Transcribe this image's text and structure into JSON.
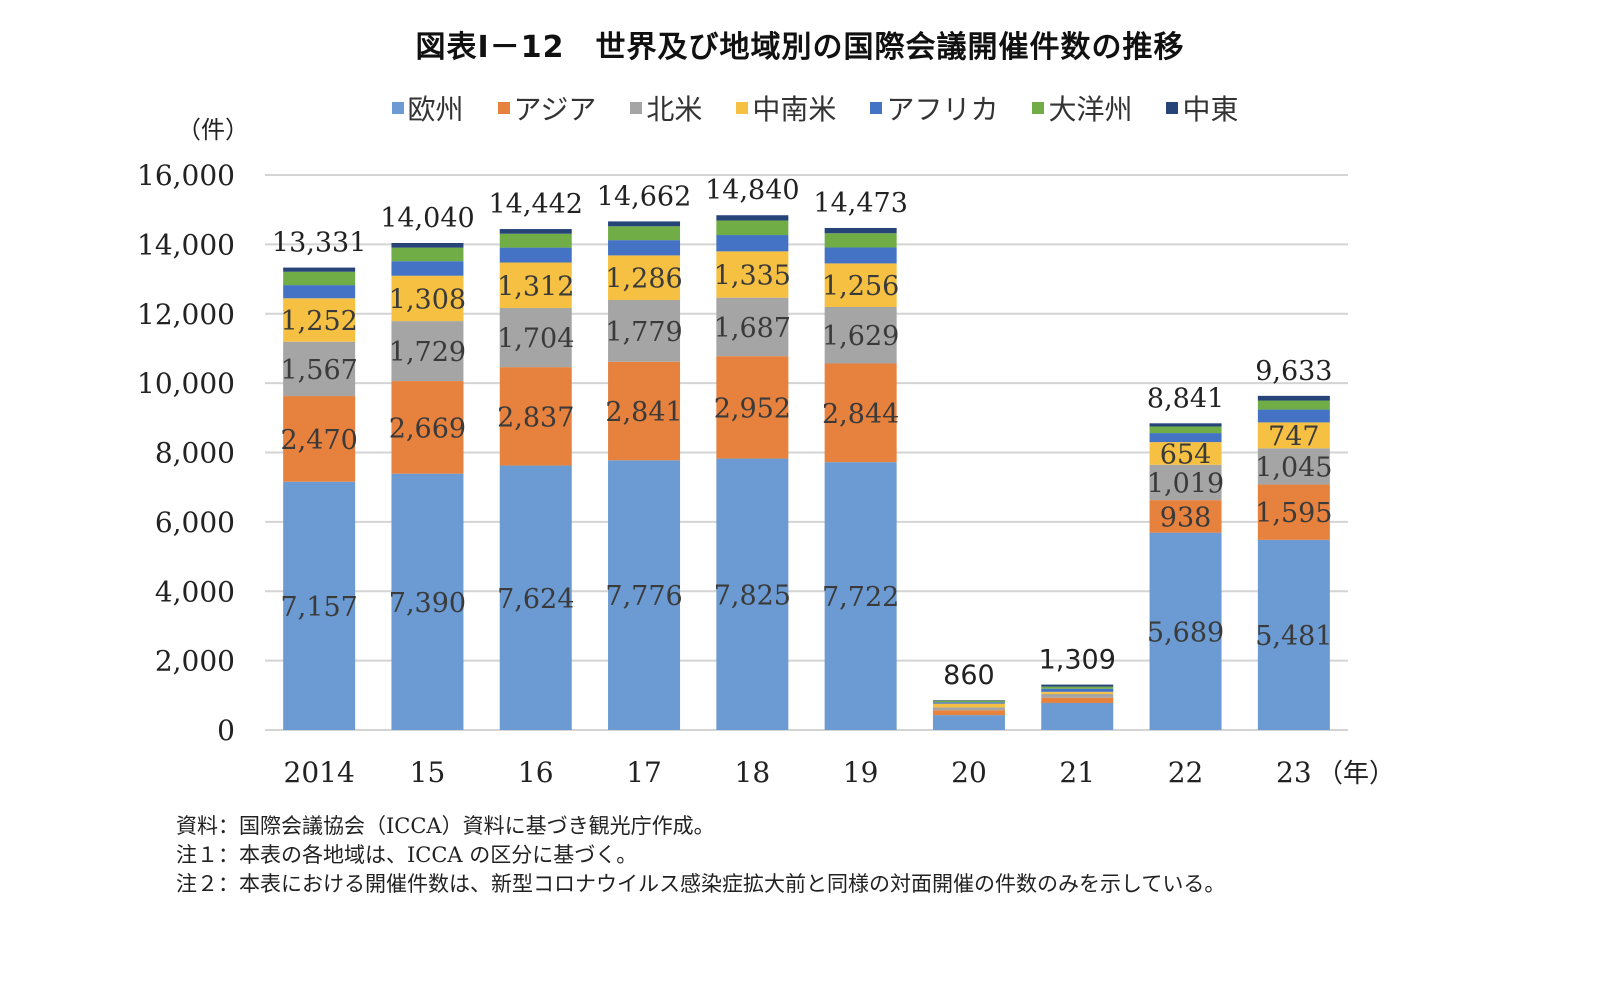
{
  "chart_data": {
    "type": "bar",
    "stacked": true,
    "title": "図表Ⅰ－12　世界及び地域別の国際会議開催件数の推移",
    "ylabel": "（件）",
    "xlabel": "（年）",
    "ylim": [
      0,
      16000
    ],
    "yticks": [
      0,
      2000,
      4000,
      6000,
      8000,
      10000,
      12000,
      14000,
      16000
    ],
    "ytick_labels": [
      "0",
      "2,000",
      "4,000",
      "6,000",
      "8,000",
      "10,000",
      "12,000",
      "14,000",
      "16,000"
    ],
    "grid": true,
    "legend_position": "top",
    "categories": [
      "2014",
      "15",
      "16",
      "17",
      "18",
      "19",
      "20",
      "21",
      "22",
      "23"
    ],
    "series": [
      {
        "name": "欧州",
        "color": "#6b9bd2",
        "values": [
          7157,
          7390,
          7624,
          7776,
          7825,
          7722,
          430,
          780,
          5689,
          5481
        ],
        "labeled": [
          true,
          true,
          true,
          true,
          true,
          true,
          false,
          false,
          true,
          true
        ]
      },
      {
        "name": "アジア",
        "color": "#e6813e",
        "values": [
          2470,
          2669,
          2837,
          2841,
          2952,
          2844,
          140,
          150,
          938,
          1595
        ],
        "labeled": [
          true,
          true,
          true,
          true,
          true,
          true,
          false,
          false,
          true,
          true
        ]
      },
      {
        "name": "北米",
        "color": "#a5a5a5",
        "values": [
          1567,
          1729,
          1704,
          1779,
          1687,
          1629,
          80,
          110,
          1019,
          1045
        ],
        "labeled": [
          true,
          true,
          true,
          true,
          true,
          true,
          false,
          false,
          true,
          true
        ]
      },
      {
        "name": "中南米",
        "color": "#f6c142",
        "values": [
          1252,
          1308,
          1312,
          1286,
          1335,
          1256,
          110,
          60,
          654,
          747
        ],
        "labeled": [
          true,
          true,
          true,
          true,
          true,
          true,
          false,
          false,
          true,
          true
        ]
      },
      {
        "name": "アフリカ",
        "color": "#4472c4",
        "values": [
          380,
          420,
          430,
          440,
          470,
          460,
          40,
          90,
          260,
          370
        ],
        "labeled": [
          false,
          false,
          false,
          false,
          false,
          false,
          false,
          false,
          false,
          false
        ]
      },
      {
        "name": "大洋州",
        "color": "#70ad47",
        "values": [
          385,
          390,
          400,
          400,
          420,
          410,
          45,
          60,
          190,
          260
        ],
        "labeled": [
          false,
          false,
          false,
          false,
          false,
          false,
          false,
          false,
          false,
          false
        ]
      },
      {
        "name": "中東",
        "color": "#264478",
        "values": [
          120,
          134,
          135,
          140,
          151,
          152,
          15,
          59,
          91,
          135
        ],
        "labeled": [
          false,
          false,
          false,
          false,
          false,
          false,
          false,
          false,
          false,
          false
        ]
      }
    ],
    "totals": [
      13331,
      14040,
      14442,
      14662,
      14840,
      14473,
      860,
      1309,
      8841,
      9633
    ],
    "total_labels": [
      "13,331",
      "14,040",
      "14,442",
      "14,662",
      "14,840",
      "14,473",
      "860",
      "1,309",
      "8,841",
      "9,633"
    ]
  },
  "notes": [
    "資料：国際会議協会（ICCA）資料に基づき観光庁作成。",
    "注１：本表の各地域は、ICCA の区分に基づく。",
    "注２：本表における開催件数は、新型コロナウイルス感染症拡大前と同様の対面開催の件数のみを示している。"
  ]
}
